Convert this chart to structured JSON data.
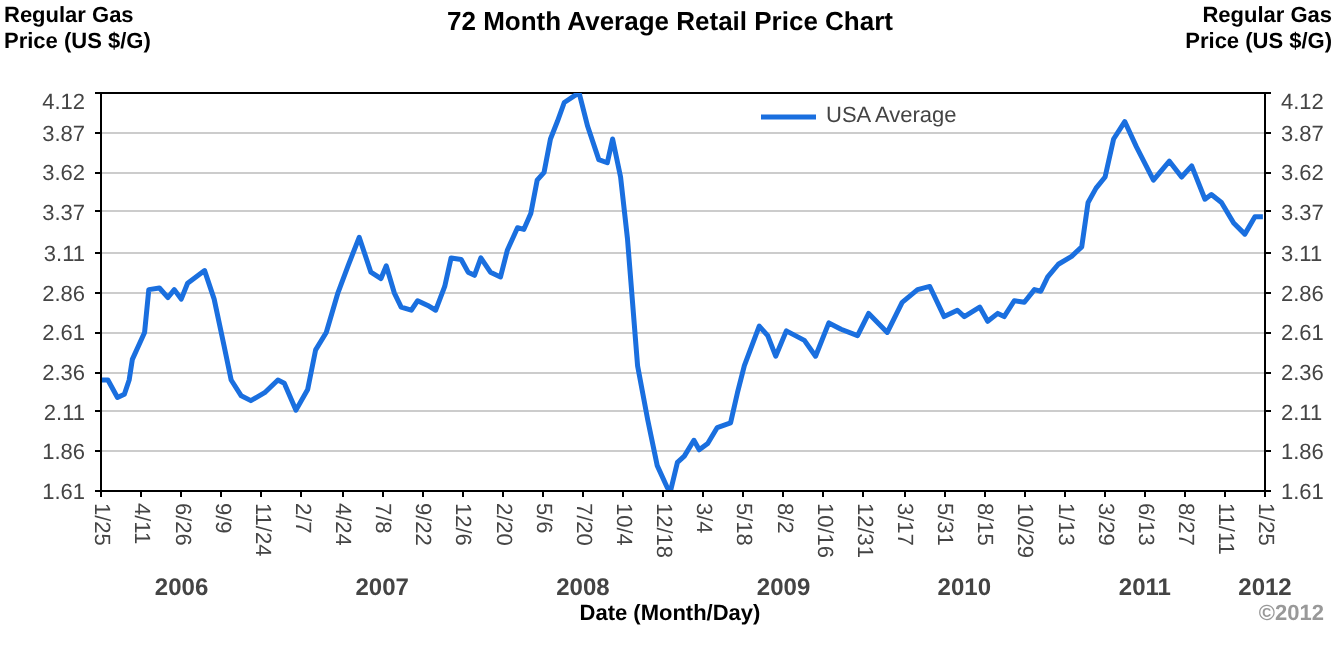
{
  "chart_data": {
    "type": "line",
    "title": "72 Month Average Retail Price Chart",
    "xlabel": "Date (Month/Day)",
    "ylabel": "Regular Gas Price (US $/G)",
    "y2label": "Regular Gas Price (US $/G)",
    "x": [
      "2006-01-25",
      "2006-02-07",
      "2006-02-25",
      "2006-03-10",
      "2006-03-19",
      "2006-03-25",
      "2006-04-17",
      "2006-04-25",
      "2006-05-15",
      "2006-05-31",
      "2006-06-12",
      "2006-06-25",
      "2006-07-07",
      "2006-08-08",
      "2006-08-26",
      "2006-09-14",
      "2006-09-27",
      "2006-10-16",
      "2006-11-03",
      "2006-11-29",
      "2006-12-24",
      "2007-01-05",
      "2007-01-27",
      "2007-02-18",
      "2007-03-05",
      "2007-03-25",
      "2007-04-16",
      "2007-05-05",
      "2007-05-26",
      "2007-06-17",
      "2007-07-06",
      "2007-07-16",
      "2007-07-31",
      "2007-08-13",
      "2007-09-01",
      "2007-09-13",
      "2007-10-02",
      "2007-10-17",
      "2007-11-03",
      "2007-11-15",
      "2007-12-04",
      "2007-12-17",
      "2007-12-29",
      "2008-01-10",
      "2008-01-28",
      "2008-02-16",
      "2008-02-29",
      "2008-03-19",
      "2008-03-31",
      "2008-04-13",
      "2008-04-25",
      "2008-05-08",
      "2008-05-20",
      "2008-06-02",
      "2008-06-15",
      "2008-07-03",
      "2008-07-13",
      "2008-07-29",
      "2008-08-19",
      "2008-09-04",
      "2008-09-14",
      "2008-09-29",
      "2008-10-12",
      "2008-10-31",
      "2008-11-19",
      "2008-12-07",
      "2008-12-26",
      "2009-01-01",
      "2009-01-14",
      "2009-01-27",
      "2009-02-14",
      "2009-02-24",
      "2009-03-12",
      "2009-03-30",
      "2009-04-24",
      "2009-05-07",
      "2009-05-20",
      "2009-06-17",
      "2009-07-03",
      "2009-07-18",
      "2009-08-07",
      "2009-09-10",
      "2009-10-01",
      "2009-10-26",
      "2009-11-18",
      "2009-12-19",
      "2010-01-09",
      "2010-02-13",
      "2010-03-13",
      "2010-04-11",
      "2010-05-04",
      "2010-05-31",
      "2010-06-25",
      "2010-07-08",
      "2010-08-06",
      "2010-08-21",
      "2010-09-09",
      "2010-09-21",
      "2010-10-10",
      "2010-10-29",
      "2010-11-17",
      "2010-11-29",
      "2010-12-12",
      "2011-01-01",
      "2011-01-26",
      "2011-02-14",
      "2011-02-26",
      "2011-03-13",
      "2011-03-30",
      "2011-04-15",
      "2011-05-06",
      "2011-05-28",
      "2011-06-29",
      "2011-07-29",
      "2011-08-21",
      "2011-09-09",
      "2011-10-04",
      "2011-10-16",
      "2011-11-04",
      "2011-11-27",
      "2011-12-18",
      "2012-01-06",
      "2012-01-21"
    ],
    "series": [
      {
        "name": "USA Average",
        "color": "#1a6fdf",
        "values": [
          2.31,
          2.31,
          2.2,
          2.22,
          2.31,
          2.44,
          2.61,
          2.88,
          2.89,
          2.83,
          2.88,
          2.82,
          2.92,
          3.0,
          2.82,
          2.52,
          2.31,
          2.21,
          2.18,
          2.23,
          2.31,
          2.29,
          2.12,
          2.25,
          2.5,
          2.61,
          2.86,
          3.03,
          3.21,
          2.99,
          2.95,
          3.03,
          2.86,
          2.77,
          2.75,
          2.81,
          2.78,
          2.75,
          2.9,
          3.08,
          3.07,
          2.99,
          2.97,
          3.08,
          2.99,
          2.96,
          3.13,
          3.27,
          3.26,
          3.36,
          3.57,
          3.62,
          3.83,
          3.94,
          4.06,
          4.1,
          4.12,
          3.91,
          3.7,
          3.68,
          3.83,
          3.59,
          3.2,
          2.4,
          2.06,
          1.77,
          1.63,
          1.61,
          1.79,
          1.83,
          1.93,
          1.87,
          1.91,
          2.01,
          2.04,
          2.23,
          2.4,
          2.65,
          2.59,
          2.46,
          2.62,
          2.56,
          2.46,
          2.67,
          2.63,
          2.59,
          2.73,
          2.61,
          2.8,
          2.88,
          2.9,
          2.71,
          2.75,
          2.71,
          2.77,
          2.68,
          2.73,
          2.71,
          2.81,
          2.8,
          2.88,
          2.87,
          2.96,
          3.04,
          3.09,
          3.15,
          3.43,
          3.52,
          3.59,
          3.83,
          3.94,
          3.78,
          3.57,
          3.69,
          3.59,
          3.66,
          3.45,
          3.48,
          3.43,
          3.3,
          3.23,
          3.34,
          3.34
        ]
      }
    ],
    "xlim": [
      "2006-01-25",
      "2012-01-25"
    ],
    "xticks": [
      {
        "value": "2006-01-25",
        "label": "1/25"
      },
      {
        "value": "2006-04-11",
        "label": "4/11"
      },
      {
        "value": "2006-06-26",
        "label": "6/26"
      },
      {
        "value": "2006-09-09",
        "label": "9/9"
      },
      {
        "value": "2006-11-24",
        "label": "11/24"
      },
      {
        "value": "2007-02-07",
        "label": "2/7"
      },
      {
        "value": "2007-04-24",
        "label": "4/24"
      },
      {
        "value": "2007-07-08",
        "label": "7/8"
      },
      {
        "value": "2007-09-22",
        "label": "9/22"
      },
      {
        "value": "2007-12-06",
        "label": "12/6"
      },
      {
        "value": "2008-02-20",
        "label": "2/20"
      },
      {
        "value": "2008-05-06",
        "label": "5/6"
      },
      {
        "value": "2008-07-20",
        "label": "7/20"
      },
      {
        "value": "2008-10-04",
        "label": "10/4"
      },
      {
        "value": "2008-12-18",
        "label": "12/18"
      },
      {
        "value": "2009-03-04",
        "label": "3/4"
      },
      {
        "value": "2009-05-18",
        "label": "5/18"
      },
      {
        "value": "2009-08-02",
        "label": "8/2"
      },
      {
        "value": "2009-10-16",
        "label": "10/16"
      },
      {
        "value": "2009-12-31",
        "label": "12/31"
      },
      {
        "value": "2010-03-17",
        "label": "3/17"
      },
      {
        "value": "2010-05-31",
        "label": "5/31"
      },
      {
        "value": "2010-08-15",
        "label": "8/15"
      },
      {
        "value": "2010-10-29",
        "label": "10/29"
      },
      {
        "value": "2011-01-13",
        "label": "1/13"
      },
      {
        "value": "2011-03-29",
        "label": "3/29"
      },
      {
        "value": "2011-06-13",
        "label": "6/13"
      },
      {
        "value": "2011-08-27",
        "label": "8/27"
      },
      {
        "value": "2011-11-11",
        "label": "11/11"
      },
      {
        "value": "2012-01-25",
        "label": "1/25"
      }
    ],
    "ylim": [
      1.61,
      4.12
    ],
    "yticks": [
      1.61,
      1.86,
      2.11,
      2.36,
      2.61,
      2.86,
      3.11,
      3.37,
      3.62,
      3.87,
      4.12
    ],
    "y2lim": [
      1.61,
      4.12
    ],
    "y2ticks": [
      1.61,
      1.86,
      2.11,
      2.36,
      2.61,
      2.86,
      3.11,
      3.37,
      3.62,
      3.87,
      4.12
    ],
    "annotations": [
      "2006",
      "2007",
      "2008",
      "2009",
      "2010",
      "2011",
      "2012",
      "©2012"
    ],
    "grid": "y",
    "legend": "top right",
    "line_style": "solid",
    "marker": "none"
  }
}
